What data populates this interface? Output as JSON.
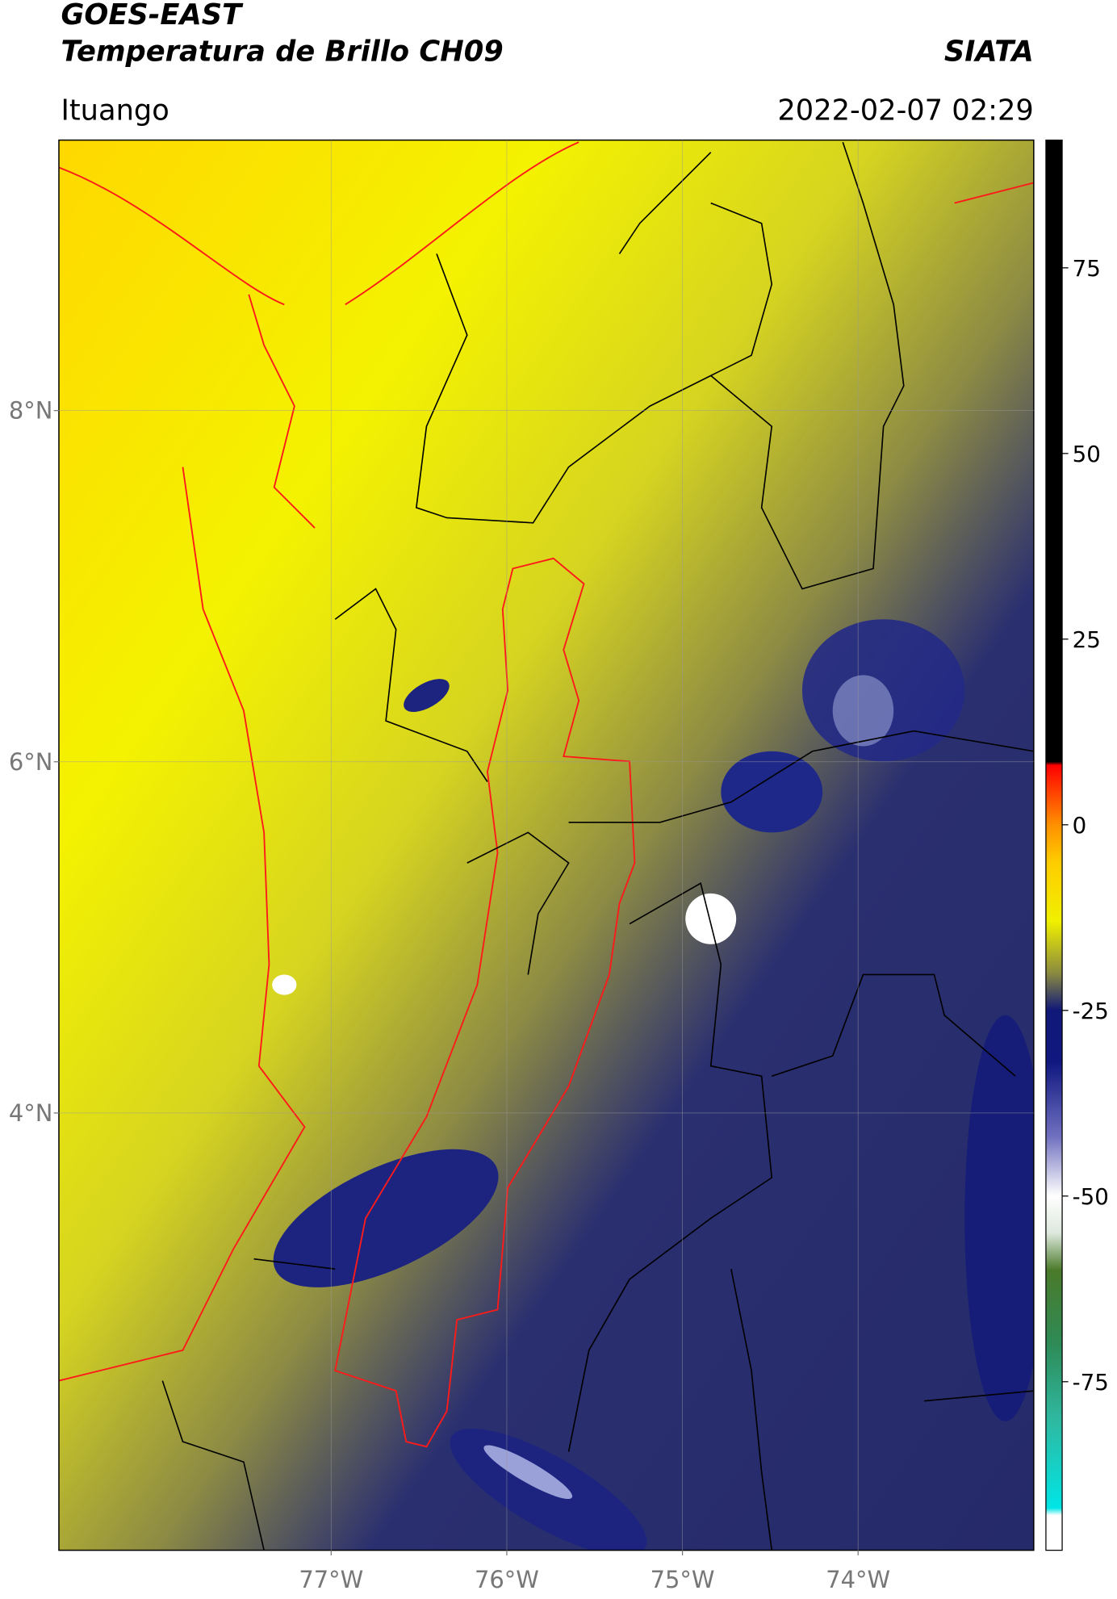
{
  "header": {
    "title": "GOES-EAST",
    "subtitle": "Temperatura de Brillo CH09",
    "source": "SIATA",
    "region": "Ituango",
    "timestamp": "2022-02-07 02:29"
  },
  "map": {
    "xlim": [
      -78.55,
      -73.0
    ],
    "ylim": [
      1.51,
      9.54
    ],
    "grid": true,
    "xticks": [
      {
        "value": -77,
        "label": "77°W"
      },
      {
        "value": -76,
        "label": "76°W"
      },
      {
        "value": -75,
        "label": "75°W"
      },
      {
        "value": -74,
        "label": "74°W"
      }
    ],
    "yticks": [
      {
        "value": 4,
        "label": "4°N"
      },
      {
        "value": 6,
        "label": "6°N"
      },
      {
        "value": 8,
        "label": "8°N"
      }
    ]
  },
  "colorbar": {
    "lim": [
      -97.7,
      92.2
    ],
    "ticks": [
      -75,
      -50,
      -25,
      0,
      25,
      50,
      75
    ],
    "stops": [
      {
        "value": 92.2,
        "color": "#000000"
      },
      {
        "value": 8.5,
        "color": "#000000"
      },
      {
        "value": 8,
        "color": "#ff0000"
      },
      {
        "value": 0,
        "color": "#ff9000"
      },
      {
        "value": -5,
        "color": "#ffcc00"
      },
      {
        "value": -13,
        "color": "#f0f000"
      },
      {
        "value": -20,
        "color": "#8a8a40"
      },
      {
        "value": -25,
        "color": "#101878"
      },
      {
        "value": -32,
        "color": "#101880"
      },
      {
        "value": -42,
        "color": "#7070c0"
      },
      {
        "value": -50,
        "color": "#ffffff"
      },
      {
        "value": -55,
        "color": "#dde8dd"
      },
      {
        "value": -60,
        "color": "#4a7a2a"
      },
      {
        "value": -70,
        "color": "#2e8b57"
      },
      {
        "value": -80,
        "color": "#2fb8a0"
      },
      {
        "value": -92,
        "color": "#00e5e5"
      },
      {
        "value": -93,
        "color": "#ffffff"
      },
      {
        "value": -97.7,
        "color": "#ffffff"
      }
    ]
  }
}
